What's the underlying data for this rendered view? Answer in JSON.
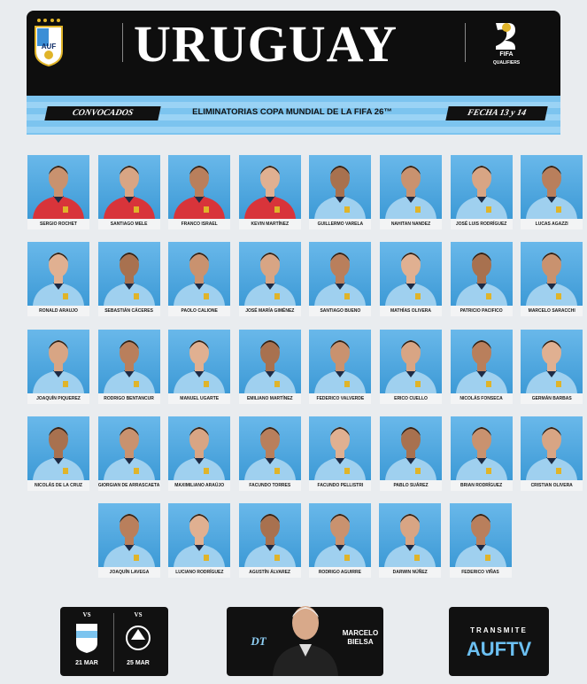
{
  "header": {
    "crest_label": "AUF",
    "title": "URUGUAY",
    "badge": {
      "label": "FIFA",
      "subtitle": "QUALIFIERS"
    }
  },
  "banner": {
    "left": "CONVOCADOS",
    "center": "ELIMINATORIAS COPA MUNDIAL DE LA FIFA 26™",
    "right": "FECHA 13 y 14"
  },
  "players": [
    "SERGIO ROCHET",
    "SANTIAGO MELE",
    "FRANCO ISRAEL",
    "KEVIN MARTÍNEZ",
    "GUILLERMO VARELA",
    "NAHITAN NANDEZ",
    "JOSÉ LUIS RODRÍGUEZ",
    "LUCAS AGAZZI",
    "RONALD ARAUJO",
    "SEBASTIÁN CÁCERES",
    "PAOLO CALIONE",
    "JOSÉ MARÍA GIMÉNEZ",
    "SANTIAGO BUENO",
    "MATHÍAS OLIVERA",
    "PATRICIO PACIFICO",
    "MARCELO SARACCHI",
    "JOAQUÍN PIQUEREZ",
    "RODRIGO BENTANCUR",
    "MANUEL UGARTE",
    "EMILIANO MARTÍNEZ",
    "FEDERICO VALVERDE",
    "ERICO CUELLO",
    "NICOLÁS FONSECA",
    "GERMÁN BARBAS",
    "NICOLÁS DE LA CRUZ",
    "GIORGIAN DE ARRASCAETA",
    "MAXIMILIANO ARAÚJO",
    "FACUNDO TORRES",
    "FACUNDO PELLISTRI",
    "PABLO SUÁREZ",
    "BRIAN RODRÍGUEZ",
    "CRISTIAN OLIVERA",
    "JOAQUÍN LAVEGA",
    "LUCIANO RODRÍGUEZ",
    "AGUSTÍN ÁLVAREZ",
    "RODRIGO AGUIRRE",
    "DARWIN NÚÑEZ",
    "FEDERICO VIÑAS"
  ],
  "fixtures": [
    {
      "vs": "VS",
      "date": "21 MAR"
    },
    {
      "vs": "VS",
      "date": "25 MAR"
    }
  ],
  "coach": {
    "role": "DT",
    "name": "MARCELO BIELSA"
  },
  "broadcast": {
    "label": "TRANSMITE",
    "channel": "AUFTV"
  }
}
